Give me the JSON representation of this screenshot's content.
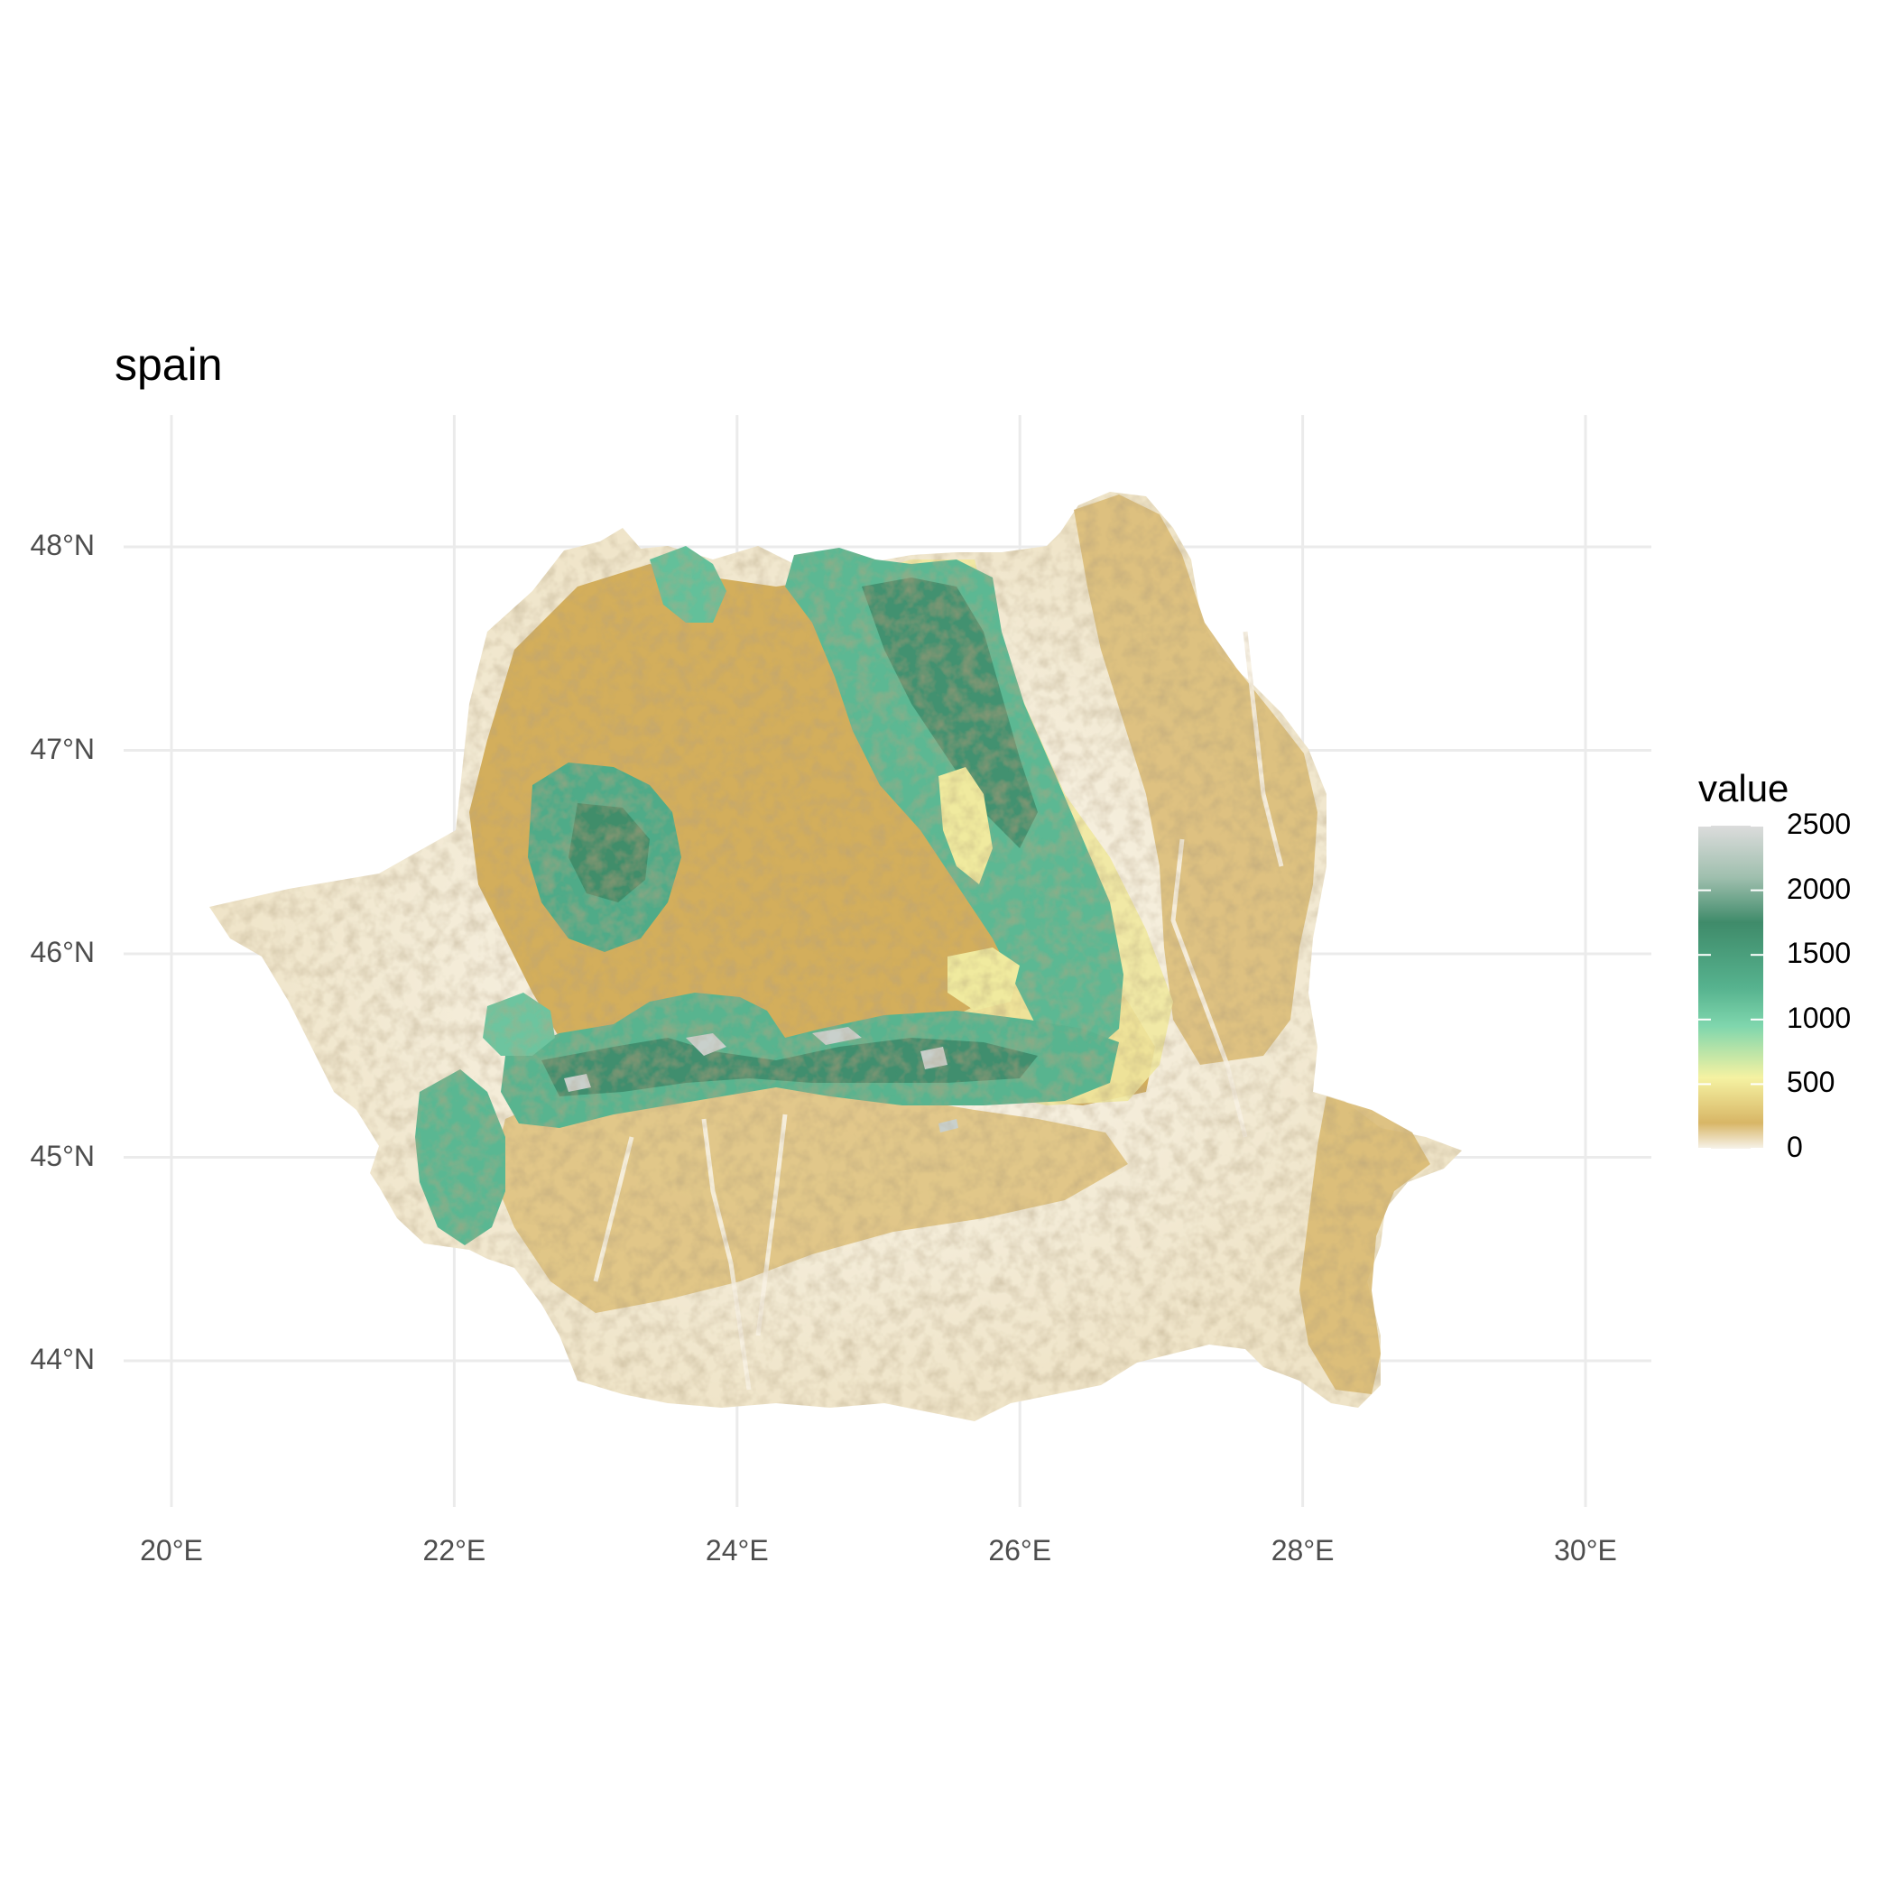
{
  "title": "spain",
  "map": {
    "type": "raster-elevation-map",
    "x_axis": {
      "ticks": [
        {
          "value": 20,
          "label": "20°E"
        },
        {
          "value": 22,
          "label": "22°E"
        },
        {
          "value": 24,
          "label": "24°E"
        },
        {
          "value": 26,
          "label": "26°E"
        },
        {
          "value": 28,
          "label": "28°E"
        },
        {
          "value": 30,
          "label": "30°E"
        }
      ],
      "range": [
        19.8,
        30.4
      ]
    },
    "y_axis": {
      "ticks": [
        {
          "value": 48,
          "label": "48°N"
        },
        {
          "value": 47,
          "label": "47°N"
        },
        {
          "value": 46,
          "label": "46°N"
        },
        {
          "value": 45,
          "label": "45°N"
        },
        {
          "value": 44,
          "label": "44°N"
        }
      ],
      "range": [
        43.3,
        48.65
      ]
    },
    "grid": true,
    "colors": {
      "grid": "#ebebeb",
      "lowland": "#f3ede0",
      "plain": "#e3c98a",
      "hill": "#d4b15f",
      "upland": "#f3ee9e",
      "mountain": "#5fbb98",
      "high_mountain": "#3f8d6b",
      "peak": "#d8d8d8"
    }
  },
  "legend": {
    "title": "value",
    "position": "right",
    "min": 0,
    "max": 2500,
    "ticks": [
      {
        "value": 2500,
        "label": "2500"
      },
      {
        "value": 2000,
        "label": "2000"
      },
      {
        "value": 1500,
        "label": "1500"
      },
      {
        "value": 1000,
        "label": "1000"
      },
      {
        "value": 500,
        "label": "500"
      },
      {
        "value": 0,
        "label": "0"
      }
    ],
    "gradient": [
      {
        "value": 0,
        "color": "#f7f3ea"
      },
      {
        "value": 200,
        "color": "#d8b666"
      },
      {
        "value": 550,
        "color": "#f5f2a2"
      },
      {
        "value": 950,
        "color": "#7fd6ad"
      },
      {
        "value": 1250,
        "color": "#56b28e"
      },
      {
        "value": 1750,
        "color": "#3f8b6a"
      },
      {
        "value": 2100,
        "color": "#9fbfae"
      },
      {
        "value": 2500,
        "color": "#dcdcdc"
      }
    ]
  }
}
